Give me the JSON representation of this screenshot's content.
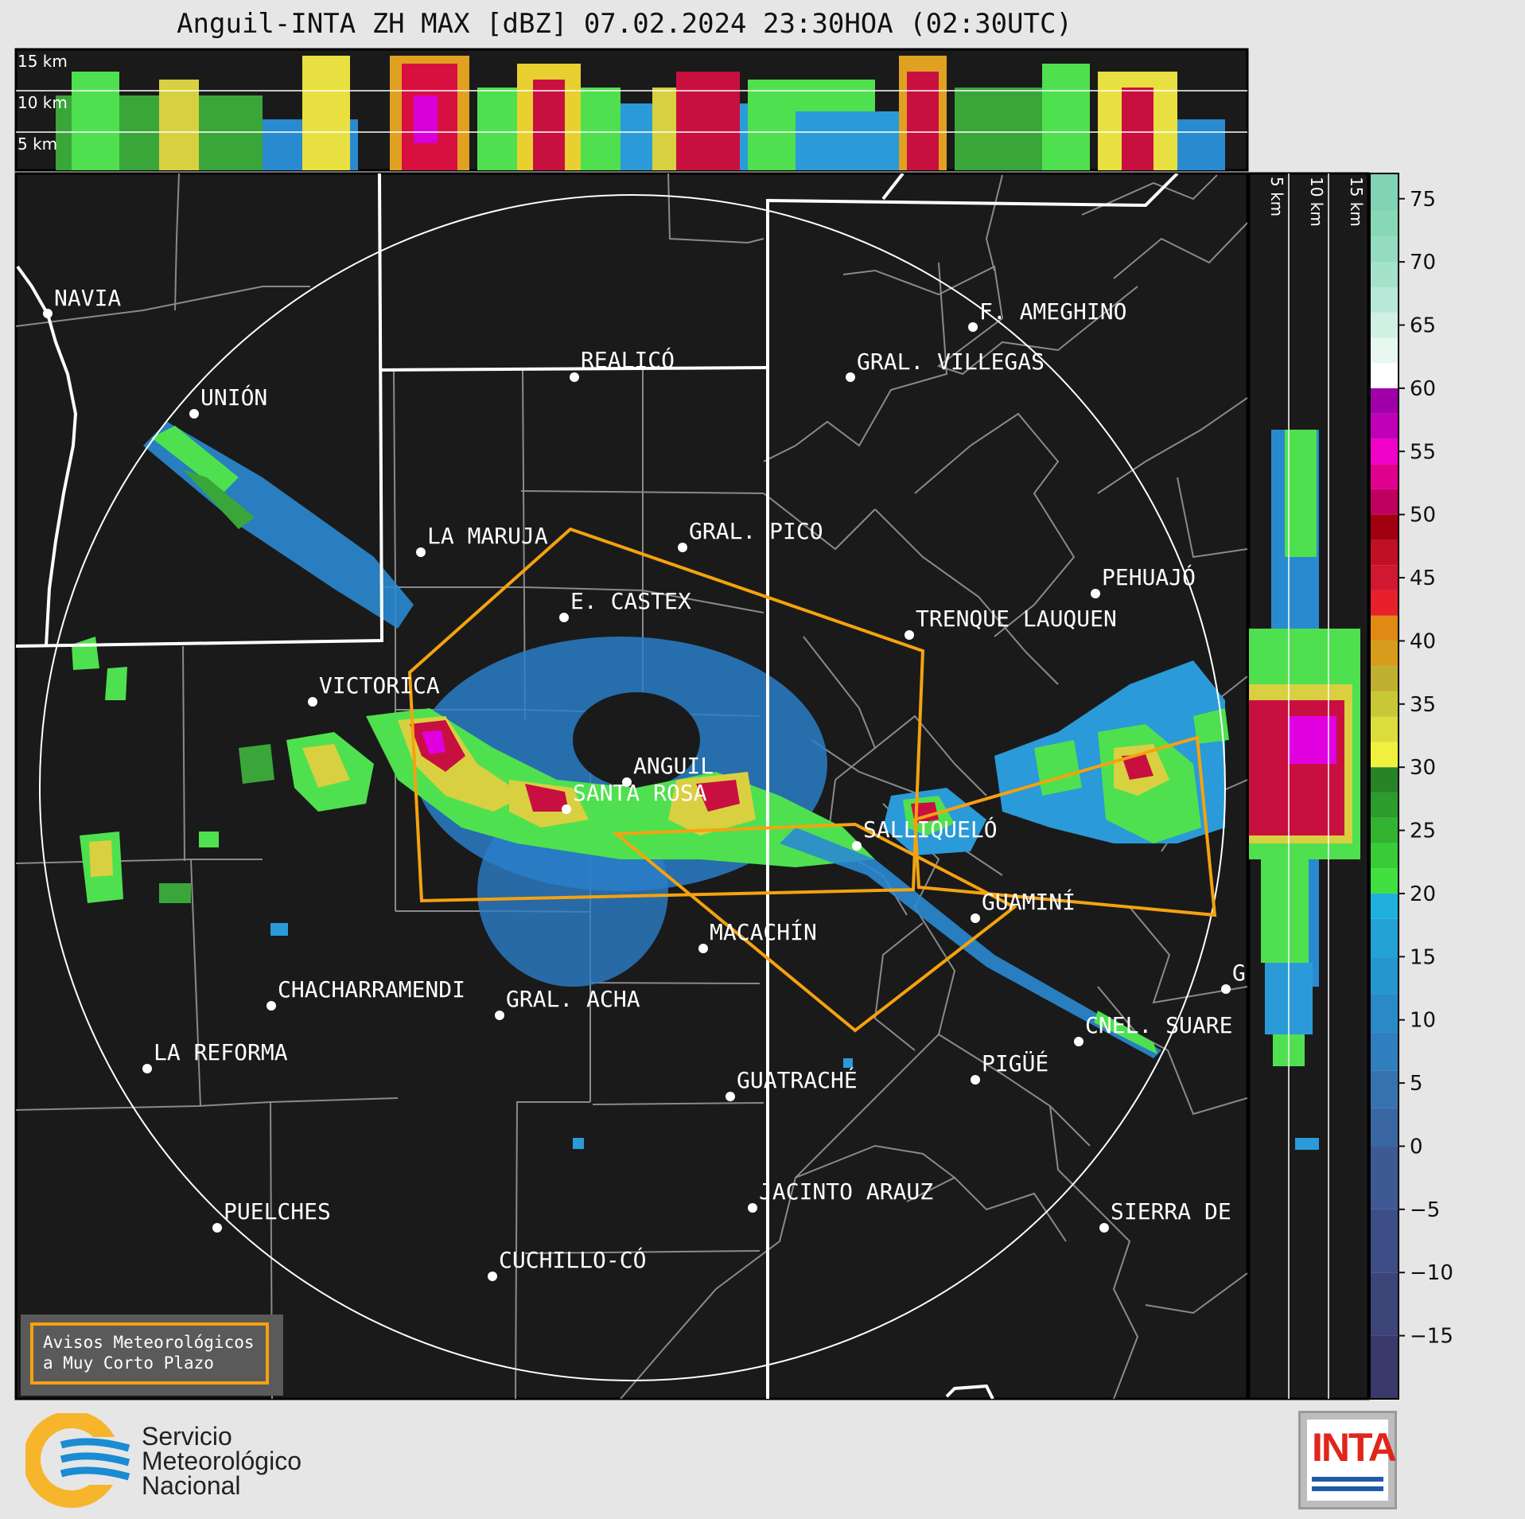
{
  "title": "Anguil-INTA ZH MAX [dBZ] 07.02.2024 23:30HOA (02:30UTC)",
  "top_panel": {
    "km_labels": [
      "15 km",
      "10 km",
      "5 km"
    ]
  },
  "right_panel": {
    "km_labels": [
      "5 km",
      "10 km",
      "15 km"
    ]
  },
  "colorbar": {
    "ticks": [
      "75",
      "70",
      "65",
      "60",
      "55",
      "50",
      "45",
      "40",
      "35",
      "30",
      "25",
      "20",
      "15",
      "10",
      "5",
      "0",
      "−5",
      "−10",
      "−15"
    ]
  },
  "cities": [
    {
      "name": "NAVIA"
    },
    {
      "name": "UNIÓN"
    },
    {
      "name": "REALICÓ"
    },
    {
      "name": "F. AMEGHINO"
    },
    {
      "name": "GRAL. VILLEGAS"
    },
    {
      "name": "LA MARUJA"
    },
    {
      "name": "GRAL. PICO"
    },
    {
      "name": "PEHUAJÓ"
    },
    {
      "name": "E. CASTEX"
    },
    {
      "name": "TRENQUE LAUQUEN"
    },
    {
      "name": "VICTORICA"
    },
    {
      "name": "ANGUIL"
    },
    {
      "name": "SANTA ROSA"
    },
    {
      "name": "SALLIQUELÓ"
    },
    {
      "name": "GUAMINÍ"
    },
    {
      "name": "MACACHÍN"
    },
    {
      "name": "G"
    },
    {
      "name": "CHACHARRAMENDI"
    },
    {
      "name": "GRAL. ACHA"
    },
    {
      "name": "CNEL. SUARE"
    },
    {
      "name": "LA REFORMA"
    },
    {
      "name": "PIGÜÉ"
    },
    {
      "name": "GUATRACHÉ"
    },
    {
      "name": "JACINTO ARAUZ"
    },
    {
      "name": "PUELCHES"
    },
    {
      "name": "SIERRA DE"
    },
    {
      "name": "CUCHILLO-CÓ"
    }
  ],
  "legend": {
    "line1": "Avisos Meteorológicos",
    "line2": "a Muy Corto Plazo"
  },
  "logos": {
    "smn_line1": "Servicio",
    "smn_line2": "Meteorológico",
    "smn_line3": "Nacional",
    "inta": "INTA"
  },
  "colors": {
    "warning": "#f5a20f",
    "map_bg": "#1a1a1a",
    "border": "#ffffff"
  }
}
